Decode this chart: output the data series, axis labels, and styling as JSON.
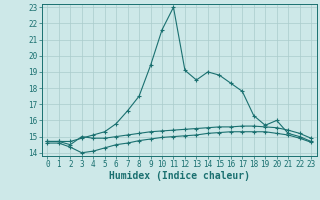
{
  "title": "",
  "xlabel": "Humidex (Indice chaleur)",
  "ylabel": "",
  "background_color": "#cde8e8",
  "grid_color": "#aacccc",
  "line_color": "#1a7070",
  "xlim": [
    -0.5,
    23.5
  ],
  "ylim": [
    13.8,
    23.2
  ],
  "xticks": [
    0,
    1,
    2,
    3,
    4,
    5,
    6,
    7,
    8,
    9,
    10,
    11,
    12,
    13,
    14,
    15,
    16,
    17,
    18,
    19,
    20,
    21,
    22,
    23
  ],
  "yticks": [
    14,
    15,
    16,
    17,
    18,
    19,
    20,
    21,
    22,
    23
  ],
  "line1_x": [
    0,
    1,
    2,
    3,
    4,
    5,
    6,
    7,
    8,
    9,
    10,
    11,
    12,
    13,
    14,
    15,
    16,
    17,
    18,
    19,
    20,
    21,
    22,
    23
  ],
  "line1_y": [
    14.7,
    14.7,
    14.7,
    14.9,
    15.1,
    15.3,
    15.8,
    16.6,
    17.5,
    19.4,
    21.6,
    23.0,
    19.1,
    18.5,
    19.0,
    18.8,
    18.3,
    17.8,
    16.3,
    15.7,
    16.0,
    15.2,
    15.0,
    14.7
  ],
  "line2_x": [
    0,
    1,
    2,
    3,
    4,
    5,
    6,
    7,
    8,
    9,
    10,
    11,
    12,
    13,
    14,
    15,
    16,
    17,
    18,
    19,
    20,
    21,
    22,
    23
  ],
  "line2_y": [
    14.7,
    14.7,
    14.5,
    15.0,
    14.9,
    14.9,
    15.0,
    15.1,
    15.2,
    15.3,
    15.35,
    15.4,
    15.45,
    15.5,
    15.55,
    15.6,
    15.6,
    15.65,
    15.65,
    15.6,
    15.55,
    15.4,
    15.2,
    14.9
  ],
  "line3_x": [
    0,
    1,
    2,
    3,
    4,
    5,
    6,
    7,
    8,
    9,
    10,
    11,
    12,
    13,
    14,
    15,
    16,
    17,
    18,
    19,
    20,
    21,
    22,
    23
  ],
  "line3_y": [
    14.6,
    14.6,
    14.35,
    14.0,
    14.1,
    14.3,
    14.5,
    14.6,
    14.75,
    14.85,
    14.95,
    15.0,
    15.05,
    15.1,
    15.2,
    15.25,
    15.3,
    15.3,
    15.3,
    15.3,
    15.2,
    15.1,
    14.9,
    14.65
  ],
  "marker": "+",
  "markersize": 3,
  "linewidth": 0.8,
  "xlabel_fontsize": 7,
  "tick_fontsize": 5.5
}
